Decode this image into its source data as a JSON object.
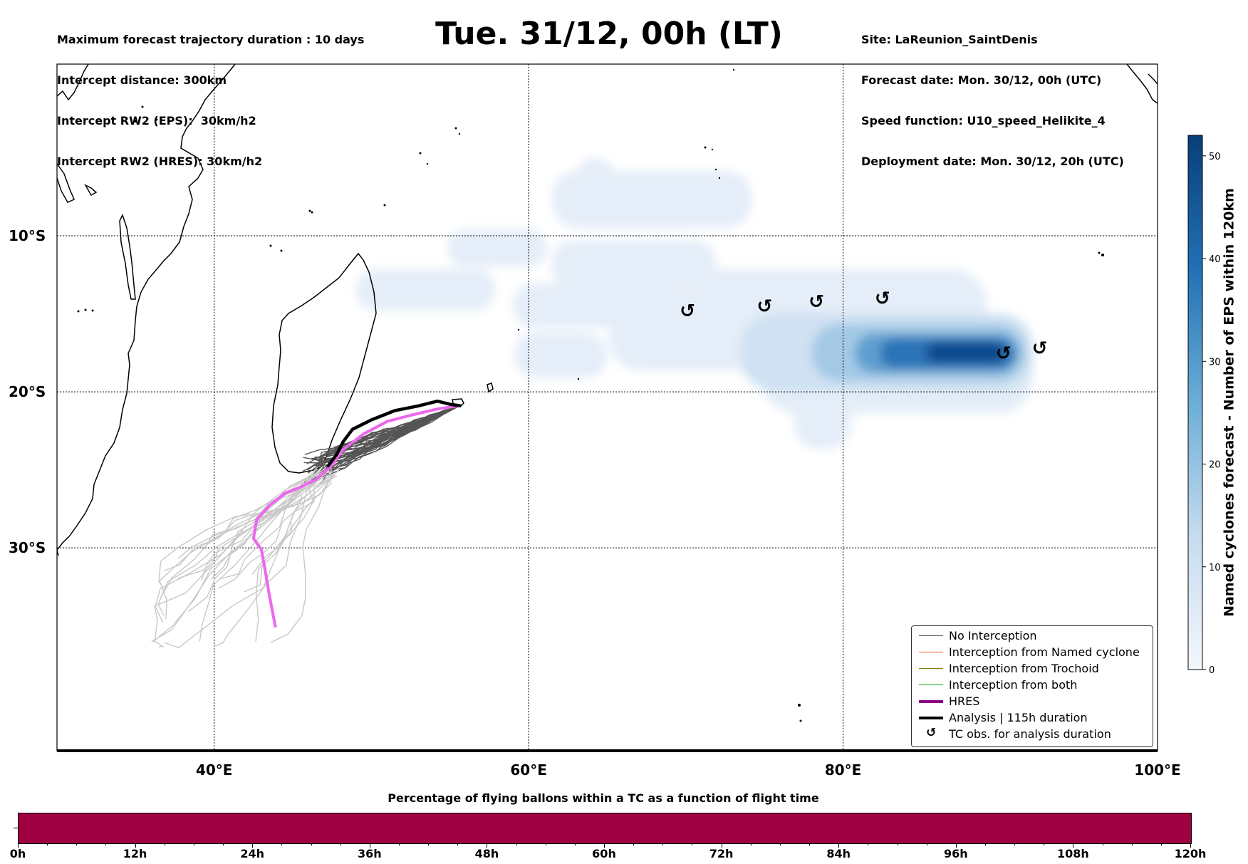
{
  "header_left": [
    "Maximum forecast trajectory duration : 10 days",
    "Intercept distance: 300km",
    "Intercept RW2 (EPS):  30km/h2",
    "Intercept RW2 (HRES): 30km/h2"
  ],
  "header_right": [
    "Site: LaReunion_SaintDenis",
    "Forecast date: Mon. 30/12, 00h (UTC)",
    "Speed function: U10_speed_Helikite_4",
    "Deployment date: Mon. 30/12, 20h (UTC)"
  ],
  "title": "Tue. 31/12, 00h (LT)",
  "map": {
    "lon_range": [
      30,
      100
    ],
    "lat_range": [
      -43,
      1
    ],
    "lon_ticks": [
      {
        "value": 40,
        "label": "40°E"
      },
      {
        "value": 60,
        "label": "60°E"
      },
      {
        "value": 80,
        "label": "80°E"
      },
      {
        "value": 100,
        "label": "100°E"
      }
    ],
    "lat_ticks": [
      {
        "value": -10,
        "label": "10°S"
      },
      {
        "value": -20,
        "label": "20°S"
      },
      {
        "value": -30,
        "label": "30°S"
      }
    ],
    "tc_symbol": "↺",
    "tc_obs": [
      {
        "lon": 70.1,
        "lat": -14.8
      },
      {
        "lon": 75.0,
        "lat": -14.5
      },
      {
        "lon": 78.3,
        "lat": -14.2
      },
      {
        "lon": 82.5,
        "lat": -14.0
      },
      {
        "lon": 90.2,
        "lat": -17.5
      },
      {
        "lon": 92.5,
        "lat": -17.2
      }
    ],
    "hres_track": [
      [
        55.5,
        -20.9
      ],
      [
        54.2,
        -21.1
      ],
      [
        52.5,
        -21.5
      ],
      [
        51.0,
        -21.9
      ],
      [
        49.5,
        -22.7
      ],
      [
        48.2,
        -23.7
      ],
      [
        47.4,
        -24.8
      ],
      [
        46.5,
        -25.6
      ],
      [
        45.5,
        -26.1
      ],
      [
        44.5,
        -26.5
      ],
      [
        43.5,
        -27.3
      ],
      [
        42.7,
        -28.2
      ],
      [
        42.5,
        -29.4
      ],
      [
        43.0,
        -30.1
      ],
      [
        43.2,
        -31.2
      ],
      [
        43.5,
        -33.0
      ],
      [
        43.9,
        -35.1
      ]
    ],
    "analysis_track": [
      [
        55.7,
        -20.9
      ],
      [
        55.0,
        -20.8
      ],
      [
        54.2,
        -20.6
      ],
      [
        53.0,
        -20.9
      ],
      [
        51.5,
        -21.2
      ],
      [
        50.0,
        -21.8
      ],
      [
        48.8,
        -22.4
      ],
      [
        48.2,
        -23.2
      ],
      [
        47.8,
        -24.0
      ],
      [
        47.2,
        -24.8
      ]
    ],
    "colors": {
      "hres": "#ee66ee",
      "hres_legend": "#8b008b",
      "analysis": "#000000",
      "eps_dark": "#555555",
      "eps_light": "#c8c8c8"
    }
  },
  "legend": {
    "items": [
      {
        "label": "No Interception",
        "color": "#555555",
        "width": 1.5
      },
      {
        "label": "Interception from Named cyclone",
        "color": "#ff5a1f",
        "width": 1.5
      },
      {
        "label": "Interception from Trochoid",
        "color": "#808000",
        "width": 1.5
      },
      {
        "label": "Interception from both",
        "color": "#1a9e1a",
        "width": 1.5
      },
      {
        "label": "HRES",
        "color": "#8b008b",
        "width": 4
      },
      {
        "label": "Analysis | 115h duration",
        "color": "#000000",
        "width": 4
      }
    ],
    "tc_label": "TC obs. for analysis duration",
    "tc_symbol": "↺"
  },
  "colorbar": {
    "title": "Named cyclones forecast - Number of EPS within 120km",
    "ticks": [
      0,
      10,
      20,
      30,
      40,
      50
    ],
    "max": 52,
    "color_low": "#f3f7fd",
    "color_high": "#083e7a"
  },
  "bottom": {
    "title": "Percentage of flying ballons within a TC as a function of flight time",
    "bar_color": "#9e0142",
    "ticks": [
      "0h",
      "12h",
      "24h",
      "36h",
      "48h",
      "60h",
      "72h",
      "84h",
      "96h",
      "108h",
      "120h"
    ]
  }
}
